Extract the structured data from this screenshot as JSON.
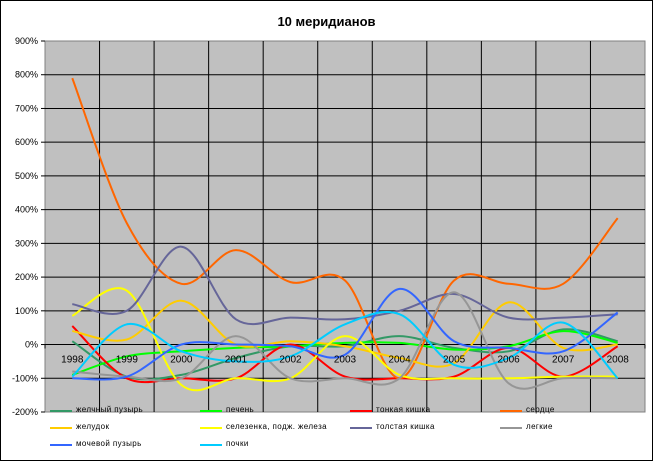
{
  "chart_data": {
    "type": "line",
    "title": "10 меридианов",
    "xlabel": "",
    "ylabel": "",
    "ylim": [
      -200,
      900
    ],
    "y_ticks": [
      "900%",
      "800%",
      "700%",
      "600%",
      "500%",
      "400%",
      "300%",
      "200%",
      "100%",
      "0%",
      "-100%",
      "-200%"
    ],
    "x": [
      "1998",
      "1999",
      "2000",
      "2001",
      "2002",
      "2003",
      "2004",
      "2005",
      "2006",
      "2007",
      "2008"
    ],
    "grid": true,
    "plot_background": "#c0c0c0",
    "legend_position": "bottom",
    "series": [
      {
        "name": "желчный пузырь",
        "color": "#339966",
        "values": [
          10,
          -95,
          -90,
          -40,
          -5,
          -5,
          25,
          -10,
          -20,
          45,
          10
        ]
      },
      {
        "name": "печень",
        "color": "#00ff00",
        "values": [
          -90,
          -35,
          -20,
          -10,
          -5,
          5,
          5,
          -15,
          -5,
          40,
          5
        ]
      },
      {
        "name": "тонкая кишка",
        "color": "#ff0000",
        "values": [
          55,
          -100,
          -100,
          -100,
          0,
          -95,
          -100,
          -95,
          -10,
          -95,
          -5
        ]
      },
      {
        "name": "сердце",
        "color": "#ff6600",
        "values": [
          790,
          360,
          180,
          280,
          185,
          190,
          -100,
          190,
          180,
          180,
          375
        ]
      },
      {
        "name": "желудок",
        "color": "#ffcc00",
        "values": [
          40,
          15,
          130,
          0,
          10,
          -5,
          -40,
          -55,
          125,
          -10,
          0
        ]
      },
      {
        "name": "селезенка, подж. железа",
        "color": "#ffff00",
        "values": [
          85,
          160,
          -120,
          -100,
          -100,
          25,
          -90,
          -100,
          -100,
          -95,
          -95
        ]
      },
      {
        "name": "толстая кишка",
        "color": "#666699",
        "values": [
          120,
          100,
          290,
          75,
          80,
          75,
          100,
          150,
          80,
          80,
          90
        ]
      },
      {
        "name": "легкие",
        "color": "#969696",
        "values": [
          -80,
          -95,
          -100,
          25,
          -100,
          -100,
          -100,
          155,
          -115,
          -100,
          -100
        ]
      },
      {
        "name": "мочевой пузырь",
        "color": "#3366ff",
        "values": [
          -100,
          -95,
          0,
          0,
          -5,
          -30,
          165,
          10,
          -10,
          -20,
          95
        ]
      },
      {
        "name": "почки",
        "color": "#00ccff",
        "values": [
          -95,
          60,
          -20,
          -50,
          -35,
          60,
          90,
          -60,
          -40,
          65,
          -100
        ]
      }
    ]
  }
}
